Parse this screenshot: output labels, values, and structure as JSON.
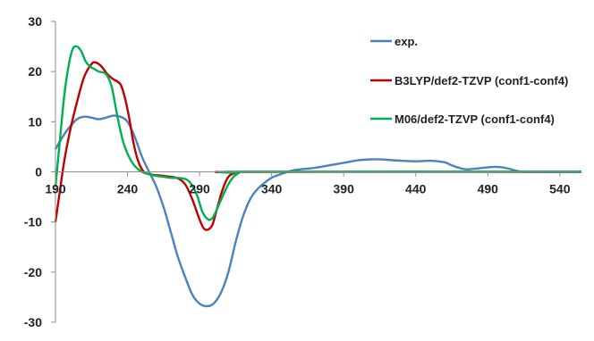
{
  "chart_data": {
    "type": "line",
    "title": "",
    "xlabel": "",
    "ylabel": "",
    "xlim": [
      190,
      555
    ],
    "ylim": [
      -30,
      30
    ],
    "x_ticks": [
      190,
      240,
      290,
      340,
      390,
      440,
      490,
      540
    ],
    "y_ticks": [
      -30,
      -20,
      -10,
      0,
      10,
      20,
      30
    ],
    "x_tick_labels": [
      "190",
      "240",
      "290",
      "340",
      "390",
      "440",
      "490",
      "540"
    ],
    "y_tick_labels": [
      "-30",
      "-20",
      "-10",
      "0",
      "10",
      "20",
      "30"
    ],
    "grid": false,
    "legend_position": "right",
    "series": [
      {
        "name": "exp.",
        "color": "#4f81bd",
        "points": [
          [
            190,
            4.5
          ],
          [
            195,
            7
          ],
          [
            200,
            9
          ],
          [
            205,
            10.5
          ],
          [
            210,
            11
          ],
          [
            215,
            10.8
          ],
          [
            220,
            10.5
          ],
          [
            225,
            10.8
          ],
          [
            230,
            11.2
          ],
          [
            235,
            11
          ],
          [
            240,
            10
          ],
          [
            245,
            7
          ],
          [
            250,
            3
          ],
          [
            255,
            0
          ],
          [
            260,
            -3
          ],
          [
            265,
            -7
          ],
          [
            270,
            -12
          ],
          [
            275,
            -17
          ],
          [
            280,
            -21
          ],
          [
            285,
            -24.5
          ],
          [
            290,
            -26.3
          ],
          [
            295,
            -26.8
          ],
          [
            300,
            -26.2
          ],
          [
            305,
            -24
          ],
          [
            310,
            -20
          ],
          [
            315,
            -14
          ],
          [
            320,
            -9
          ],
          [
            325,
            -5.5
          ],
          [
            330,
            -3.5
          ],
          [
            335,
            -2.2
          ],
          [
            340,
            -1.2
          ],
          [
            345,
            -0.6
          ],
          [
            350,
            -0.1
          ],
          [
            355,
            0.3
          ],
          [
            360,
            0.5
          ],
          [
            370,
            0.8
          ],
          [
            380,
            1.3
          ],
          [
            390,
            1.8
          ],
          [
            400,
            2.3
          ],
          [
            410,
            2.5
          ],
          [
            420,
            2.4
          ],
          [
            430,
            2.2
          ],
          [
            440,
            2.1
          ],
          [
            450,
            2.2
          ],
          [
            460,
            1.9
          ],
          [
            465,
            1.3
          ],
          [
            470,
            0.8
          ],
          [
            475,
            0.5
          ],
          [
            480,
            0.6
          ],
          [
            490,
            0.9
          ],
          [
            495,
            1
          ],
          [
            500,
            0.9
          ],
          [
            505,
            0.6
          ],
          [
            510,
            0.2
          ],
          [
            515,
            0
          ],
          [
            530,
            0
          ],
          [
            555,
            0
          ]
        ]
      },
      {
        "name": "B3LYP/def2-TZVP (conf1-conf4)",
        "color": "#c00000",
        "points": [
          [
            190,
            -10
          ],
          [
            193,
            -4
          ],
          [
            196,
            2
          ],
          [
            200,
            8
          ],
          [
            205,
            14
          ],
          [
            210,
            19
          ],
          [
            215,
            21.5
          ],
          [
            218,
            21.8
          ],
          [
            222,
            21
          ],
          [
            226,
            19.5
          ],
          [
            230,
            18.5
          ],
          [
            235,
            17.5
          ],
          [
            238,
            15
          ],
          [
            241,
            11
          ],
          [
            244,
            6
          ],
          [
            247,
            2.5
          ],
          [
            250,
            0.5
          ],
          [
            253,
            -0.3
          ],
          [
            258,
            -0.6
          ],
          [
            265,
            -0.8
          ],
          [
            270,
            -1
          ],
          [
            275,
            -1.3
          ],
          [
            280,
            -2.5
          ],
          [
            285,
            -5.5
          ],
          [
            290,
            -9.5
          ],
          [
            293,
            -11.3
          ],
          [
            296,
            -11.5
          ],
          [
            299,
            -10.5
          ],
          [
            302,
            -7.5
          ],
          [
            306,
            -3.5
          ],
          [
            310,
            -1
          ],
          [
            315,
            -0.2
          ],
          [
            320,
            0
          ],
          [
            555,
            0
          ]
        ]
      },
      {
        "name": "M06/def2-TZVP (conf1-conf4)",
        "color": "#00b050",
        "points": [
          [
            190,
            -3
          ],
          [
            193,
            6
          ],
          [
            196,
            15
          ],
          [
            199,
            21
          ],
          [
            202,
            24.5
          ],
          [
            205,
            25
          ],
          [
            208,
            24
          ],
          [
            211,
            22
          ],
          [
            214,
            21
          ],
          [
            217,
            20.5
          ],
          [
            220,
            20
          ],
          [
            225,
            19.5
          ],
          [
            229,
            17
          ],
          [
            233,
            11
          ],
          [
            237,
            6
          ],
          [
            241,
            3
          ],
          [
            245,
            1.2
          ],
          [
            250,
            0
          ],
          [
            255,
            -0.5
          ],
          [
            260,
            -0.8
          ],
          [
            265,
            -1
          ],
          [
            270,
            -1.2
          ],
          [
            278,
            -1.3
          ],
          [
            283,
            -2
          ],
          [
            288,
            -4.5
          ],
          [
            292,
            -8
          ],
          [
            296,
            -9.5
          ],
          [
            299,
            -9.2
          ],
          [
            302,
            -7.5
          ],
          [
            305,
            -5.5
          ],
          [
            309,
            -3
          ],
          [
            313,
            -1.2
          ],
          [
            317,
            -0.3
          ],
          [
            322,
            0
          ],
          [
            555,
            0
          ]
        ]
      }
    ]
  }
}
